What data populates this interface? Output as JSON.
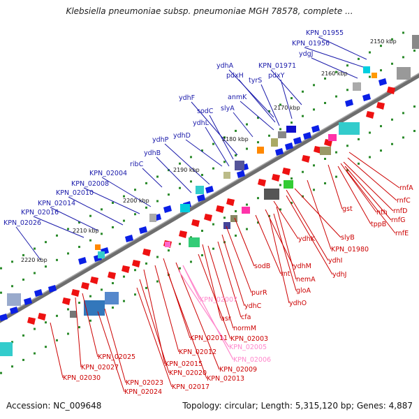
{
  "title": "Klebsiella pneumoniae subsp. pneumoniae MGH 78578, complete ...",
  "footer": {
    "accession": "Accession: NC_009648",
    "summary": "Topology: circular; Length: 5,315,120 bp; Genes: 4,887"
  },
  "colors": {
    "forward_label": "#1a1aaa",
    "reverse_label": "#cc0000",
    "pseudo_label": "#ff88cc",
    "axis": "#777777",
    "tick_dot": "#2a8a2a"
  },
  "ticks": [
    "2150 kbp",
    "2160 kbp",
    "2170 kbp",
    "2180 kbp",
    "2190 kbp",
    "2200 kbp",
    "2210 kbp",
    "2220 kbp"
  ],
  "forward_labels": [
    "KPN_01955",
    "KPN_01956",
    "ydgJ",
    "KPN_01971",
    "ydhA",
    "pdxH",
    "tyrS",
    "pdxY",
    "anmK",
    "slyA",
    "ydhF",
    "sodC",
    "ydhL",
    "ydhD",
    "ydhP",
    "ydhB",
    "ribC",
    "KPN_02004",
    "KPN_02008",
    "KPN_02010",
    "KPN_02014",
    "KPN_02016",
    "KPN_02026"
  ],
  "reverse_labels": [
    "rnfA",
    "rnfC",
    "rnfD",
    "nth",
    "rnfG",
    "tppB",
    "rnfE",
    "gst",
    "slyB",
    "KPN_01980",
    "ydhK",
    "ydhI",
    "ydhJ",
    "ydhM",
    "nemA",
    "gloA",
    "ydhO",
    "sodB",
    "rnt",
    "purR",
    "ydhC",
    "cfa",
    "asr",
    "normM",
    "KPN_02003",
    "KPN_02011",
    "KPN_02012",
    "KPN_02015",
    "KPN_02009",
    "KPN_02013",
    "KPN_02020",
    "KPN_02025",
    "KPN_02027",
    "KPN_02030",
    "KPN_02023",
    "KPN_02017",
    "KPN_02024"
  ],
  "pseudo_labels": [
    "KPN_02007",
    "KPN_02005",
    "KPN_02006"
  ]
}
